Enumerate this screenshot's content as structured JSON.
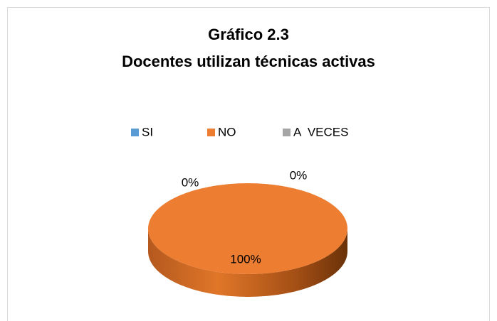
{
  "chart_data": {
    "type": "pie",
    "title": [
      "Gráfico 2.3",
      "Docentes utilizan técnicas activas"
    ],
    "categories": [
      "SI",
      "NO",
      "A  VECES"
    ],
    "values": [
      0,
      100,
      0
    ],
    "value_labels": [
      "0%",
      "100%",
      "0%"
    ],
    "colors": [
      "#5b9bd5",
      "#ed7d31",
      "#a5a5a5"
    ],
    "legend": "top"
  }
}
